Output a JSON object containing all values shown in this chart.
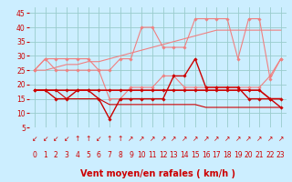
{
  "x": [
    0,
    1,
    2,
    3,
    4,
    5,
    6,
    7,
    8,
    9,
    10,
    11,
    12,
    13,
    14,
    15,
    16,
    17,
    18,
    19,
    20,
    21,
    22,
    23
  ],
  "series": [
    {
      "label": "rafales_high",
      "color": "#f08080",
      "linewidth": 0.8,
      "marker": "D",
      "markersize": 1.8,
      "values": [
        25,
        29,
        29,
        29,
        29,
        29,
        25,
        25,
        29,
        29,
        40,
        40,
        33,
        33,
        33,
        43,
        43,
        43,
        43,
        29,
        43,
        43,
        22,
        29
      ]
    },
    {
      "label": "rafales_trend",
      "color": "#f08080",
      "linewidth": 0.8,
      "marker": null,
      "markersize": 0,
      "values": [
        25,
        25,
        26,
        27,
        27,
        28,
        28,
        29,
        30,
        31,
        32,
        33,
        34,
        35,
        36,
        37,
        38,
        39,
        39,
        39,
        39,
        39,
        39,
        39
      ]
    },
    {
      "label": "moyen_upper",
      "color": "#f08080",
      "linewidth": 0.8,
      "marker": "D",
      "markersize": 1.8,
      "values": [
        25,
        29,
        25,
        25,
        25,
        25,
        25,
        15,
        15,
        19,
        19,
        19,
        23,
        23,
        19,
        19,
        19,
        19,
        19,
        19,
        19,
        19,
        23,
        29
      ]
    },
    {
      "label": "vent_moyen_flat",
      "color": "#cc0000",
      "linewidth": 1.2,
      "marker": "D",
      "markersize": 1.8,
      "values": [
        18,
        18,
        18,
        18,
        18,
        18,
        18,
        18,
        18,
        18,
        18,
        18,
        18,
        18,
        18,
        18,
        18,
        18,
        18,
        18,
        18,
        18,
        15,
        15
      ]
    },
    {
      "label": "vent_moyen_low",
      "color": "#cc0000",
      "linewidth": 1.0,
      "marker": "D",
      "markersize": 1.8,
      "values": [
        18,
        18,
        15,
        15,
        18,
        18,
        15,
        8,
        15,
        15,
        15,
        15,
        15,
        23,
        23,
        29,
        19,
        19,
        19,
        19,
        15,
        15,
        15,
        12
      ]
    },
    {
      "label": "vent_bas",
      "color": "#cc0000",
      "linewidth": 0.8,
      "marker": null,
      "markersize": 0,
      "values": [
        18,
        18,
        18,
        15,
        15,
        15,
        15,
        13,
        13,
        13,
        13,
        13,
        13,
        13,
        13,
        13,
        12,
        12,
        12,
        12,
        12,
        12,
        12,
        12
      ]
    }
  ],
  "arrows": [
    "↙",
    "↙",
    "↙",
    "↙",
    "↑",
    "↑",
    "↙",
    "↑",
    "↑",
    "↗",
    "↗",
    "↗",
    "↗",
    "↗",
    "↗",
    "↗",
    "↗",
    "↗",
    "↗",
    "↗",
    "↗",
    "↗",
    "↗",
    "↗"
  ],
  "xlabel": "Vent moyen/en rafales ( km/h )",
  "ylim": [
    5,
    47
  ],
  "xlim": [
    -0.5,
    23.5
  ],
  "yticks": [
    5,
    10,
    15,
    20,
    25,
    30,
    35,
    40,
    45
  ],
  "xticks": [
    0,
    1,
    2,
    3,
    4,
    5,
    6,
    7,
    8,
    9,
    10,
    11,
    12,
    13,
    14,
    15,
    16,
    17,
    18,
    19,
    20,
    21,
    22,
    23
  ],
  "bg_color": "#cceeff",
  "grid_color": "#99cccc",
  "tick_color": "#cc0000",
  "label_color": "#cc0000",
  "xlabel_fontsize": 7.0,
  "tick_fontsize": 5.5,
  "arrow_fontsize": 5.5
}
